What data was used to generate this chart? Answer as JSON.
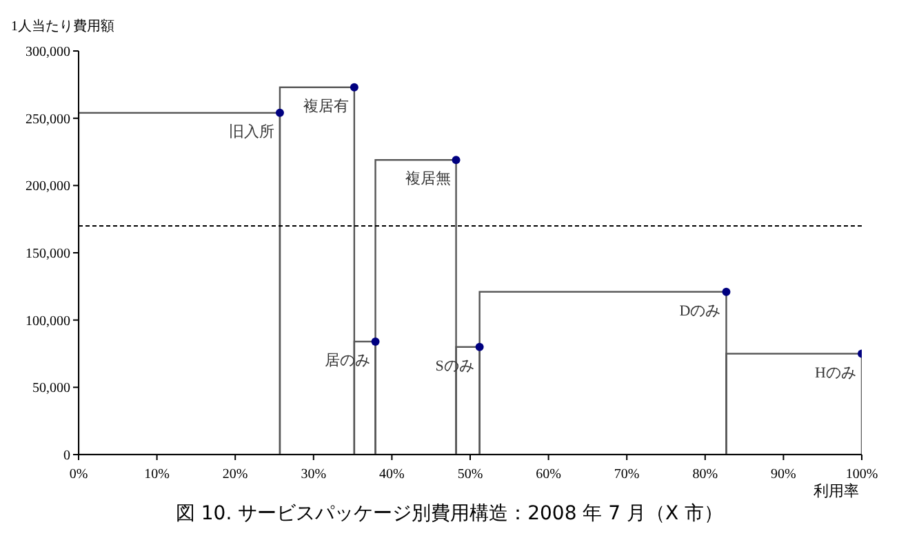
{
  "chart_data": {
    "type": "bar",
    "title": "図 10. サービスパッケージ別費用構造：2008 年 7 月（X 市）",
    "xlabel": "利用率",
    "ylabel": "1人当たり費用額",
    "x": [
      12.85,
      30.45,
      36.55,
      43.05,
      49.7,
      66.95,
      91.35
    ],
    "series": [
      {
        "color": "#555555",
        "values": [
          254000,
          273000,
          84000,
          219000,
          80000,
          121000,
          75000
        ]
      },
      {
        "type": "scatter",
        "color": "#000080",
        "x": [
          25.7,
          35.2,
          37.9,
          48.2,
          51.2,
          82.7,
          100
        ],
        "values": [
          254000,
          273000,
          84000,
          219000,
          80000,
          121000,
          75000
        ]
      }
    ],
    "marker": "circle",
    "xlim": [
      0,
      100
    ],
    "xticks": [
      {
        "value": 0,
        "label": "0%"
      },
      {
        "value": 10,
        "label": "10%"
      },
      {
        "value": 20,
        "label": "20%"
      },
      {
        "value": 30,
        "label": "30%"
      },
      {
        "value": 40,
        "label": "40%"
      },
      {
        "value": 50,
        "label": "50%"
      },
      {
        "value": 60,
        "label": "60%"
      },
      {
        "value": 70,
        "label": "70%"
      },
      {
        "value": 80,
        "label": "80%"
      },
      {
        "value": 90,
        "label": "90%"
      },
      {
        "value": 100,
        "label": "100%"
      }
    ],
    "ylim": [
      0,
      300000
    ],
    "yticks": [
      0,
      {
        "value": 50000,
        "label": "50,000"
      },
      {
        "value": 100000,
        "label": "100,000"
      },
      {
        "value": 150000,
        "label": "150,000"
      },
      {
        "value": 200000,
        "label": "200,000"
      },
      {
        "value": 250000,
        "label": "250,000"
      },
      {
        "value": 300000,
        "label": "300,000"
      }
    ],
    "ref_lines": [
      {
        "axis": "y",
        "value": 170000,
        "line_style": "dashed",
        "color": "#000000"
      }
    ],
    "annotations": [
      {
        "text": "旧入所",
        "x": 25.7,
        "y": 254000
      },
      {
        "text": "複居有",
        "x": 35.2,
        "y": 273000
      },
      {
        "text": "居のみ",
        "x": 37.9,
        "y": 84000
      },
      {
        "text": "複居無",
        "x": 48.2,
        "y": 219000
      },
      {
        "text": "Sのみ",
        "x": 51.2,
        "y": 80000
      },
      {
        "text": "Dのみ",
        "x": 82.7,
        "y": 121000
      },
      {
        "text": "Hのみ",
        "x": 100,
        "y": 75000
      }
    ]
  }
}
